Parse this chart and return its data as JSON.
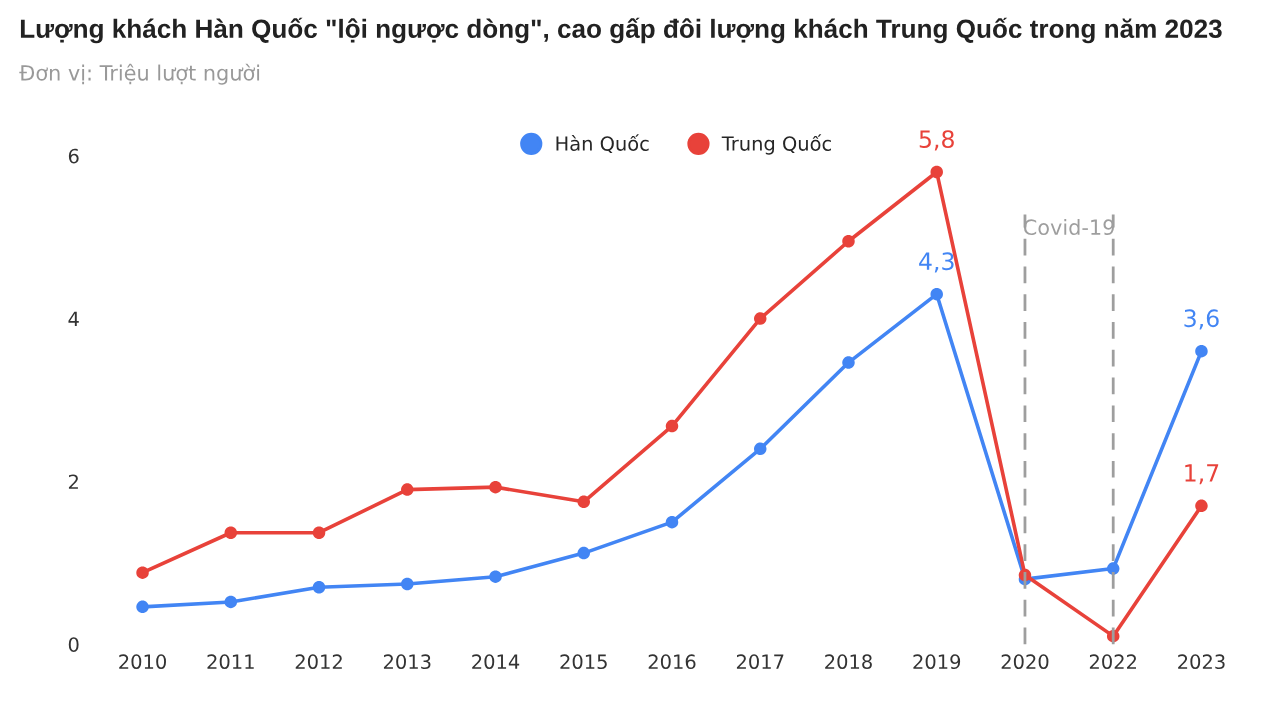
{
  "chart_data": {
    "type": "line",
    "title": "Lượng khách Hàn Quốc \"lội ngược dòng\", cao gấp đôi lượng khách Trung Quốc trong năm 2023",
    "subtitle": "Đơn vị: Triệu lượt người",
    "categories": [
      "2010",
      "2011",
      "2012",
      "2013",
      "2014",
      "2015",
      "2016",
      "2017",
      "2018",
      "2019",
      "2020",
      "2022",
      "2023"
    ],
    "series": [
      {
        "name": "Hàn Quốc",
        "color": "#4285f4",
        "values": [
          0.46,
          0.52,
          0.7,
          0.74,
          0.83,
          1.12,
          1.5,
          2.4,
          3.46,
          4.3,
          0.8,
          0.93,
          3.6
        ],
        "value_labels": [
          null,
          null,
          null,
          null,
          null,
          null,
          null,
          null,
          null,
          "4,3",
          null,
          null,
          "3,6"
        ]
      },
      {
        "name": "Trung Quốc",
        "color": "#e8423a",
        "values": [
          0.88,
          1.37,
          1.37,
          1.9,
          1.93,
          1.75,
          2.68,
          4.0,
          4.95,
          5.8,
          0.85,
          0.1,
          1.7
        ],
        "value_labels": [
          null,
          null,
          null,
          null,
          null,
          null,
          null,
          null,
          null,
          "5,8",
          null,
          null,
          "1,7"
        ]
      }
    ],
    "ref_lines": [
      {
        "axis": "x",
        "value": "2020",
        "color": "#9e9e9e",
        "line_style": "dashed"
      },
      {
        "axis": "x",
        "value": "2022",
        "color": "#9e9e9e",
        "line_style": "dashed"
      }
    ],
    "annotations": [
      "Covid-19"
    ],
    "ylim": [
      0,
      6
    ],
    "yticks": [
      0,
      2,
      4,
      6
    ],
    "legend": "top",
    "marker": "circle",
    "line_style": "solid",
    "grid": false
  }
}
